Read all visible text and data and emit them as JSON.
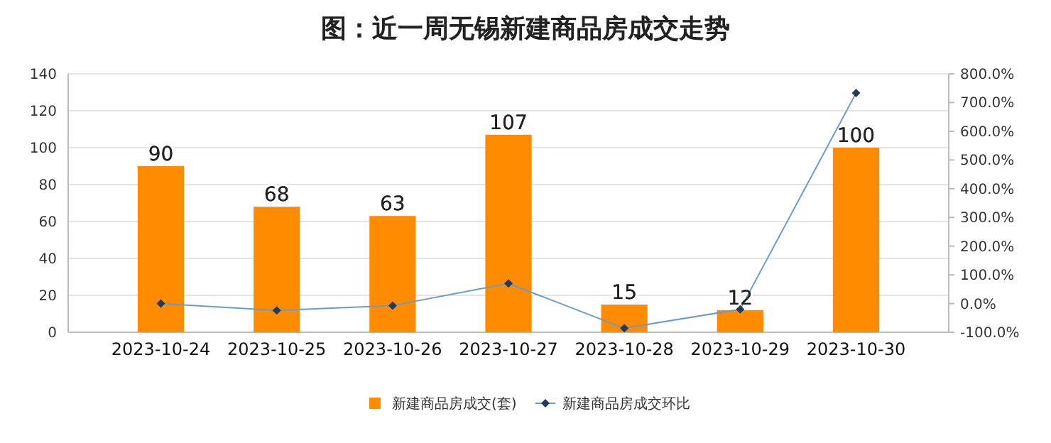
{
  "chart_data": {
    "type": "bar",
    "title": "图：近一周无锡新建商品房成交走势",
    "categories": [
      "2023-10-24",
      "2023-10-25",
      "2023-10-26",
      "2023-10-27",
      "2023-10-28",
      "2023-10-29",
      "2023-10-30"
    ],
    "series": [
      {
        "name": "新建商品房成交(套)",
        "color": "#ff8c00",
        "values": [
          90,
          68,
          63,
          107,
          15,
          12,
          100
        ],
        "value_labels": [
          "90",
          "68",
          "63",
          "107",
          "15",
          "12",
          "100"
        ]
      },
      {
        "name": "新建商品房成交环比",
        "type": "line",
        "axis": "y2",
        "color": "#6a9bc9",
        "marker": "diamond",
        "values": [
          0,
          -24,
          -7,
          70,
          -86,
          -20,
          733
        ]
      }
    ],
    "ylim": [
      0,
      140
    ],
    "yticks": [
      0,
      20,
      40,
      60,
      80,
      100,
      120,
      140
    ],
    "y2lim": [
      -100,
      800
    ],
    "y2ticks": [
      {
        "value": -100,
        "label": "-100.0%"
      },
      {
        "value": 0,
        "label": "0.0%"
      },
      {
        "value": 100,
        "label": "100.0%"
      },
      {
        "value": 200,
        "label": "200.0%"
      },
      {
        "value": 300,
        "label": "300.0%"
      },
      {
        "value": 400,
        "label": "400.0%"
      },
      {
        "value": 500,
        "label": "500.0%"
      },
      {
        "value": 600,
        "label": "600.0%"
      },
      {
        "value": 700,
        "label": "700.0%"
      },
      {
        "value": 800,
        "label": "800.0%"
      }
    ],
    "grid": "y",
    "legend": "bottom"
  }
}
